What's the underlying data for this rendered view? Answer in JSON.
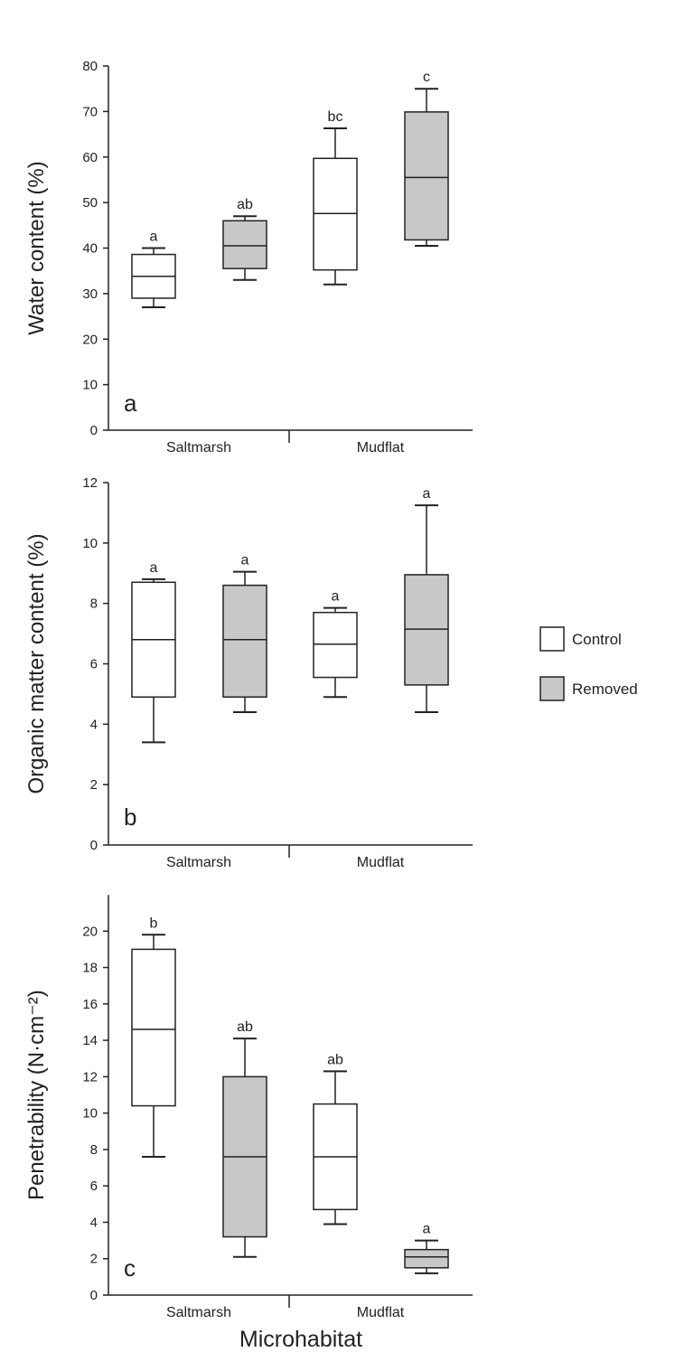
{
  "chart_data": [
    {
      "type": "box",
      "panel": "a",
      "ylabel": "Water content (%)",
      "xlabel": "",
      "ylim": [
        0,
        80
      ],
      "yticks": [
        0,
        10,
        20,
        30,
        40,
        50,
        60,
        70,
        80
      ],
      "groups": [
        "Saltmarsh",
        "Mudflat"
      ],
      "boxes": [
        {
          "group": "Saltmarsh",
          "series": "Control",
          "min": 27,
          "q1": 29,
          "median": 33.8,
          "q3": 38.6,
          "max": 40,
          "sig": "a"
        },
        {
          "group": "Saltmarsh",
          "series": "Removed",
          "min": 33,
          "q1": 35.5,
          "median": 40.5,
          "q3": 46,
          "max": 47,
          "sig": "ab"
        },
        {
          "group": "Mudflat",
          "series": "Control",
          "min": 32,
          "q1": 35.2,
          "median": 47.6,
          "q3": 59.7,
          "max": 66.3,
          "sig": "bc"
        },
        {
          "group": "Mudflat",
          "series": "Removed",
          "min": 40.5,
          "q1": 41.8,
          "median": 55.5,
          "q3": 69.9,
          "max": 75,
          "sig": "c"
        }
      ]
    },
    {
      "type": "box",
      "panel": "b",
      "ylabel": "Organic matter content (%)",
      "xlabel": "",
      "ylim": [
        0,
        12
      ],
      "yticks": [
        0,
        2,
        4,
        6,
        8,
        10,
        12
      ],
      "groups": [
        "Saltmarsh",
        "Mudflat"
      ],
      "boxes": [
        {
          "group": "Saltmarsh",
          "series": "Control",
          "min": 3.4,
          "q1": 4.9,
          "median": 6.8,
          "q3": 8.7,
          "max": 8.8,
          "sig": "a"
        },
        {
          "group": "Saltmarsh",
          "series": "Removed",
          "min": 4.4,
          "q1": 4.9,
          "median": 6.8,
          "q3": 8.6,
          "max": 9.05,
          "sig": "a"
        },
        {
          "group": "Mudflat",
          "series": "Control",
          "min": 4.9,
          "q1": 5.55,
          "median": 6.65,
          "q3": 7.7,
          "max": 7.85,
          "sig": "a"
        },
        {
          "group": "Mudflat",
          "series": "Removed",
          "min": 4.4,
          "q1": 5.3,
          "median": 7.15,
          "q3": 8.95,
          "max": 11.25,
          "sig": "a"
        }
      ]
    },
    {
      "type": "box",
      "panel": "c",
      "ylabel": "Penetrability (N·cm⁻²)",
      "xlabel": "Microhabitat",
      "ylim": [
        0,
        22
      ],
      "yticks": [
        0,
        2,
        4,
        6,
        8,
        10,
        12,
        14,
        16,
        18,
        20
      ],
      "groups": [
        "Saltmarsh",
        "Mudflat"
      ],
      "boxes": [
        {
          "group": "Saltmarsh",
          "series": "Control",
          "min": 7.6,
          "q1": 10.4,
          "median": 14.6,
          "q3": 19.0,
          "max": 19.8,
          "sig": "b"
        },
        {
          "group": "Saltmarsh",
          "series": "Removed",
          "min": 2.1,
          "q1": 3.2,
          "median": 7.6,
          "q3": 12.0,
          "max": 14.1,
          "sig": "ab"
        },
        {
          "group": "Mudflat",
          "series": "Control",
          "min": 3.9,
          "q1": 4.7,
          "median": 7.6,
          "q3": 10.5,
          "max": 12.3,
          "sig": "ab"
        },
        {
          "group": "Mudflat",
          "series": "Removed",
          "min": 1.2,
          "q1": 1.5,
          "median": 2.1,
          "q3": 2.5,
          "max": 3.0,
          "sig": "a"
        }
      ]
    }
  ],
  "legend": {
    "items": [
      {
        "label": "Control",
        "color": "#ffffff"
      },
      {
        "label": "Removed",
        "color": "#c8c8c8"
      }
    ]
  },
  "colors": {
    "Control": "#ffffff",
    "Removed": "#c8c8c8",
    "stroke": "#222222"
  }
}
